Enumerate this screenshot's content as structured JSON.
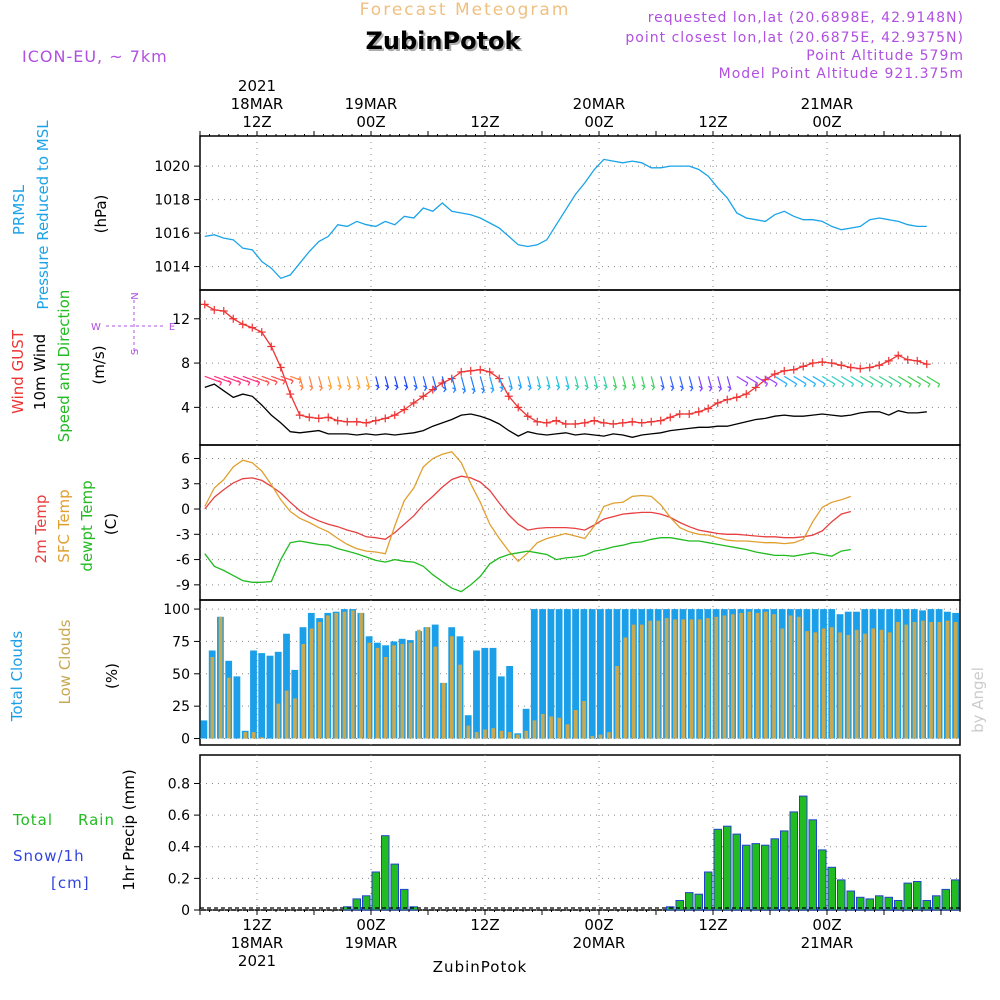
{
  "header": {
    "forecast_title": "Forecast Meteogram",
    "location_name": "ZubinPotok",
    "model": "ICON-EU, ~ 7km",
    "requested": "requested lon,lat (20.6898E, 42.9148N)",
    "closest": "point closest lon,lat (20.6875E, 42.9375N)",
    "point_altitude": "Point Altitude 579m",
    "model_altitude": "Model Point Altitude 921.375m",
    "footer_name": "ZubinPotok",
    "watermark": "by Angel"
  },
  "colors": {
    "pressure": "#1aa3e8",
    "gust": "#ee3333",
    "wind": "#000000",
    "temp2m": "#e84040",
    "sfc": "#e0a030",
    "dewpt": "#22bb22",
    "total_clouds": "#1a9fe8",
    "low_clouds": "#c8a850",
    "precip": "#22bb22",
    "precip_edge": "#2244cc",
    "magenta": "#b050e0",
    "title_orange": "#f0c080"
  },
  "compass": {
    "n": "N",
    "s": "S",
    "w": "W",
    "e": "E"
  },
  "chart_data": {
    "type": "meteogram",
    "hours": 65,
    "start": "2021-03-18 06Z",
    "top_axis": [
      {
        "hour": 6,
        "lines": [
          "2021",
          "18MAR",
          "12Z"
        ]
      },
      {
        "hour": 18,
        "lines": [
          "19MAR",
          "00Z"
        ]
      },
      {
        "hour": 30,
        "lines": [
          "12Z"
        ]
      },
      {
        "hour": 42,
        "lines": [
          "20MAR",
          "00Z"
        ]
      },
      {
        "hour": 54,
        "lines": [
          "12Z"
        ]
      },
      {
        "hour": 66,
        "lines": [
          "21MAR",
          "00Z"
        ]
      }
    ],
    "bottom_axis": [
      {
        "hour": 6,
        "lines": [
          "12Z",
          "18MAR",
          "2021"
        ]
      },
      {
        "hour": 18,
        "lines": [
          "00Z",
          "19MAR"
        ]
      },
      {
        "hour": 30,
        "lines": [
          "12Z"
        ]
      },
      {
        "hour": 42,
        "lines": [
          "00Z",
          "20MAR"
        ]
      },
      {
        "hour": 54,
        "lines": [
          "12Z"
        ]
      },
      {
        "hour": 66,
        "lines": [
          "00Z",
          "21MAR"
        ]
      }
    ],
    "panels": [
      {
        "id": "pressure",
        "labels": [
          "PRMSL",
          "Pressure Reduced to MSL"
        ],
        "unit": "(hPa)",
        "ylim": [
          1012.6,
          1021.8
        ],
        "yticks": [
          1014,
          1016,
          1018,
          1020
        ],
        "series": [
          {
            "name": "PRMSL",
            "color": "#1aa3e8",
            "values": [
              1015.8,
              1015.9,
              1015.7,
              1015.6,
              1015.1,
              1015.0,
              1014.3,
              1013.9,
              1013.3,
              1013.5,
              1014.2,
              1014.9,
              1015.5,
              1015.8,
              1016.5,
              1016.4,
              1016.7,
              1016.5,
              1016.4,
              1016.7,
              1016.5,
              1017.0,
              1016.9,
              1017.5,
              1017.3,
              1017.8,
              1017.3,
              1017.2,
              1017.1,
              1016.9,
              1016.6,
              1016.3,
              1015.8,
              1015.3,
              1015.2,
              1015.3,
              1015.6,
              1016.5,
              1017.4,
              1018.3,
              1019.0,
              1019.8,
              1020.4,
              1020.3,
              1020.2,
              1020.3,
              1020.2,
              1019.9,
              1019.9,
              1020.0,
              1020.0,
              1020.0,
              1019.8,
              1019.4,
              1018.7,
              1018.1,
              1017.2,
              1016.9,
              1016.8,
              1016.7,
              1017.1,
              1017.3,
              1017.0,
              1016.8,
              1016.8,
              1016.7,
              1016.4,
              1016.2,
              1016.3,
              1016.4,
              1016.8,
              1016.9,
              1016.8,
              1016.7,
              1016.5,
              1016.4,
              1016.4
            ]
          }
        ]
      },
      {
        "id": "wind",
        "labels": [
          "Wind GUST",
          "10m Wind",
          "Speed and Direction"
        ],
        "unit": "(m/s)",
        "ylim": [
          0.6,
          14.6
        ],
        "yticks": [
          4,
          8,
          12
        ],
        "series": [
          {
            "name": "Wind GUST",
            "color": "#ee3333",
            "values": [
              13.3,
              12.8,
              12.7,
              12.0,
              11.5,
              11.2,
              10.8,
              9.5,
              7.6,
              5.2,
              3.3,
              3.1,
              3.0,
              3.1,
              2.8,
              2.7,
              2.7,
              2.6,
              2.8,
              3.0,
              3.3,
              3.8,
              4.4,
              5.0,
              5.6,
              6.2,
              6.6,
              7.2,
              7.3,
              7.4,
              7.2,
              6.6,
              5.0,
              4.0,
              3.2,
              2.7,
              2.6,
              2.8,
              2.5,
              2.5,
              2.6,
              2.8,
              2.6,
              2.5,
              2.6,
              2.7,
              2.6,
              2.7,
              2.8,
              3.1,
              3.4,
              3.4,
              3.6,
              3.9,
              4.4,
              4.7,
              4.9,
              5.2,
              5.8,
              6.5,
              7.0,
              7.3,
              7.4,
              7.7,
              8.0,
              8.1,
              8.0,
              7.8,
              7.6,
              7.5,
              7.6,
              7.8,
              8.2,
              8.7,
              8.3,
              8.2,
              7.9
            ]
          },
          {
            "name": "10m Wind",
            "color": "#000000",
            "values": [
              5.8,
              6.1,
              5.5,
              4.9,
              5.2,
              5.0,
              4.2,
              3.3,
              2.6,
              1.8,
              1.7,
              1.8,
              1.9,
              1.6,
              1.6,
              1.6,
              1.5,
              1.6,
              1.5,
              1.6,
              1.5,
              1.6,
              1.7,
              1.9,
              2.3,
              2.6,
              2.9,
              3.3,
              3.4,
              3.2,
              2.9,
              2.5,
              1.9,
              1.4,
              1.8,
              1.6,
              1.5,
              1.6,
              1.7,
              1.5,
              1.6,
              1.5,
              1.4,
              1.6,
              1.5,
              1.3,
              1.5,
              1.6,
              1.7,
              1.9,
              2.0,
              2.1,
              2.2,
              2.2,
              2.3,
              2.3,
              2.5,
              2.7,
              2.9,
              3.0,
              3.2,
              3.3,
              3.2,
              3.2,
              3.3,
              3.4,
              3.3,
              3.2,
              3.3,
              3.5,
              3.6,
              3.6,
              3.3,
              3.7,
              3.5,
              3.5,
              3.6
            ]
          }
        ]
      },
      {
        "id": "temperature",
        "labels": [
          "2m Temp",
          "SFC Temp",
          "dewpt Temp"
        ],
        "unit": "(C)",
        "ylim": [
          -10.8,
          7.6
        ],
        "yticks": [
          -9,
          -6,
          -3,
          0,
          3,
          6
        ],
        "series": [
          {
            "name": "2m Temp",
            "color": "#e84040",
            "values": [
              0.0,
              1.4,
              2.3,
              3.1,
              3.6,
              3.7,
              3.4,
              2.7,
              1.9,
              0.8,
              -0.2,
              -0.9,
              -1.4,
              -1.8,
              -2.1,
              -2.5,
              -2.8,
              -3.3,
              -3.4,
              -3.6,
              -2.8,
              -1.8,
              -0.8,
              0.5,
              1.5,
              2.6,
              3.5,
              3.9,
              3.7,
              3.2,
              2.2,
              0.7,
              -0.7,
              -1.8,
              -2.5,
              -2.3,
              -2.2,
              -2.2,
              -2.2,
              -2.3,
              -2.5,
              -1.9,
              -1.2,
              -0.9,
              -0.6,
              -0.5,
              -0.4,
              -0.4,
              -0.6,
              -1.0,
              -1.6,
              -2.1,
              -2.5,
              -2.7,
              -2.9,
              -3.0,
              -3.0,
              -3.1,
              -3.2,
              -3.3,
              -3.3,
              -3.4,
              -3.4,
              -3.3,
              -3.1,
              -2.6,
              -1.5,
              -0.6,
              -0.3
            ]
          },
          {
            "name": "SFC Temp",
            "color": "#e0a030",
            "values": [
              0.3,
              2.5,
              3.5,
              5.0,
              5.8,
              5.5,
              4.5,
              2.9,
              1.1,
              -0.3,
              -1.1,
              -1.6,
              -2.2,
              -2.7,
              -3.5,
              -4.2,
              -4.7,
              -5.0,
              -5.1,
              -5.3,
              -2.0,
              1.0,
              2.5,
              5.0,
              6.0,
              6.5,
              6.8,
              5.5,
              3.0,
              0.8,
              -1.8,
              -3.5,
              -5.0,
              -6.2,
              -5.2,
              -4.0,
              -3.5,
              -3.2,
              -2.9,
              -3.2,
              -3.5,
              -2.0,
              0.3,
              0.7,
              0.8,
              1.5,
              1.6,
              1.5,
              0.5,
              -1.0,
              -2.2,
              -2.7,
              -3.0,
              -3.1,
              -3.4,
              -3.7,
              -3.8,
              -3.8,
              -3.9,
              -4.0,
              -4.0,
              -4.1,
              -4.0,
              -3.6,
              -1.5,
              0.2,
              0.8,
              1.1,
              1.5
            ]
          },
          {
            "name": "dewpt Temp",
            "color": "#22bb22",
            "values": [
              -5.3,
              -6.8,
              -7.3,
              -7.9,
              -8.5,
              -8.7,
              -8.7,
              -8.6,
              -6.0,
              -4.0,
              -3.8,
              -4.0,
              -4.2,
              -4.3,
              -4.7,
              -5.0,
              -5.3,
              -5.7,
              -6.1,
              -6.3,
              -6.0,
              -6.2,
              -6.3,
              -6.8,
              -7.8,
              -8.6,
              -9.4,
              -9.8,
              -9.0,
              -8.0,
              -6.5,
              -5.8,
              -5.4,
              -5.2,
              -5.0,
              -5.2,
              -5.4,
              -6.0,
              -5.8,
              -5.7,
              -5.5,
              -5.0,
              -4.8,
              -4.5,
              -4.3,
              -4.0,
              -3.9,
              -3.6,
              -3.4,
              -3.4,
              -3.6,
              -3.8,
              -3.8,
              -4.0,
              -4.2,
              -4.4,
              -4.6,
              -4.8,
              -5.1,
              -5.3,
              -5.5,
              -5.5,
              -5.6,
              -5.4,
              -5.2,
              -5.4,
              -5.6,
              -5.0,
              -4.8
            ]
          }
        ]
      }
    ],
    "clouds": {
      "labels": [
        "Total Clouds",
        "Low Clouds"
      ],
      "unit": "(%)",
      "ylim": [
        -5,
        107
      ],
      "yticks": [
        0,
        25,
        50,
        75,
        100
      ],
      "total": [
        14,
        68,
        94,
        60,
        48,
        6,
        68,
        66,
        64,
        67,
        81,
        53,
        86,
        97,
        93,
        97,
        98,
        100,
        100,
        97,
        79,
        74,
        72,
        75,
        77,
        76,
        83,
        86,
        88,
        43,
        86,
        79,
        18,
        68,
        70,
        70,
        48,
        56,
        4,
        23,
        100,
        100,
        100,
        100,
        100,
        100,
        100,
        100,
        100,
        100,
        100,
        100,
        100,
        100,
        100,
        100,
        100,
        100,
        100,
        100,
        100,
        100,
        100,
        100,
        100,
        100,
        100,
        100,
        100,
        100,
        100,
        100,
        100,
        100,
        100,
        100,
        100,
        96,
        98,
        98,
        100,
        100,
        100,
        100,
        100,
        100,
        100,
        99,
        100,
        100,
        98,
        97
      ],
      "low": [
        0,
        63,
        94,
        47,
        0,
        5,
        5,
        1,
        0,
        27,
        37,
        31,
        73,
        85,
        90,
        95,
        97,
        98,
        99,
        97,
        74,
        70,
        63,
        72,
        73,
        74,
        84,
        86,
        71,
        43,
        79,
        57,
        10,
        5,
        7,
        8,
        6,
        5,
        3,
        6,
        14,
        19,
        17,
        16,
        11,
        22,
        29,
        2,
        3,
        5,
        56,
        78,
        88,
        88,
        91,
        91,
        93,
        92,
        92,
        92,
        92,
        93,
        94,
        95,
        96,
        97,
        98,
        97,
        98,
        96,
        85,
        95,
        94,
        83,
        82,
        85,
        86,
        82,
        80,
        84,
        81,
        85,
        84,
        82,
        90,
        88,
        90,
        91,
        90,
        90,
        91,
        90
      ]
    },
    "precip": {
      "labels": [
        "Total",
        "Rain",
        "Snow/1h",
        "[cm]"
      ],
      "unit": "1hr Precip (mm)",
      "ylim": [
        0,
        0.98
      ],
      "yticks": [
        0,
        0.2,
        0.4,
        0.6,
        0.8
      ],
      "values": [
        0,
        0,
        0,
        0,
        0,
        0,
        0,
        0,
        0,
        0,
        0,
        0,
        0,
        0,
        0,
        0.02,
        0.07,
        0.09,
        0.24,
        0.47,
        0.29,
        0.13,
        0.02,
        0,
        0,
        0,
        0,
        0,
        0,
        0,
        0,
        0,
        0,
        0,
        0,
        0,
        0,
        0,
        0,
        0,
        0,
        0,
        0,
        0,
        0,
        0,
        0,
        0,
        0,
        0.02,
        0.06,
        0.11,
        0.1,
        0.24,
        0.51,
        0.53,
        0.48,
        0.41,
        0.42,
        0.41,
        0.45,
        0.5,
        0.62,
        0.72,
        0.57,
        0.38,
        0.27,
        0.19,
        0.12,
        0.08,
        0.07,
        0.09,
        0.08,
        0.06,
        0.17,
        0.18,
        0.06,
        0.09,
        0.13,
        0.19
      ]
    }
  }
}
